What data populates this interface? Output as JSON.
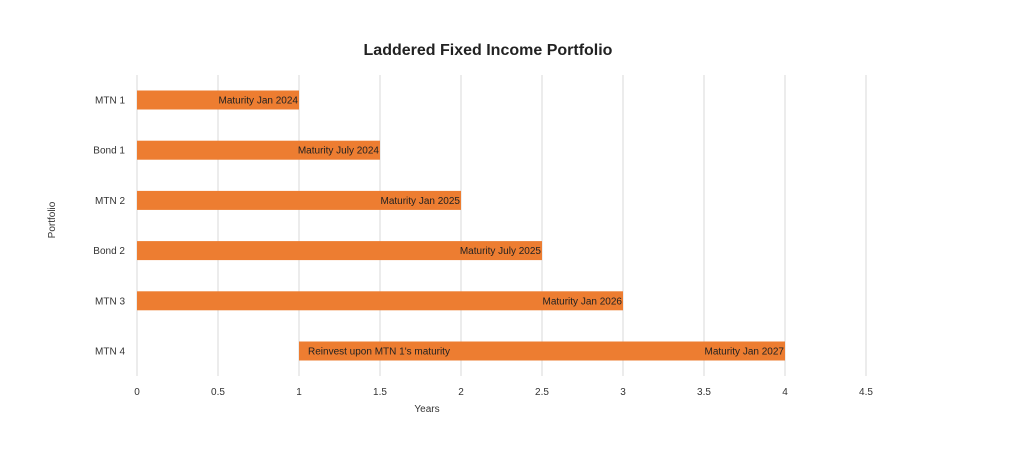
{
  "chart_data": {
    "type": "bar",
    "orientation": "horizontal",
    "stacked_range": true,
    "title": "Laddered Fixed Income Portfolio",
    "xlabel": "Years",
    "ylabel": "Portfolio",
    "xlim": [
      0,
      4.5
    ],
    "x_ticks": [
      "0",
      "0.5",
      "1",
      "1.5",
      "2",
      "2.5",
      "3",
      "3.5",
      "4",
      "4.5"
    ],
    "grid": "vertical",
    "legend": "none",
    "bar_color": "#ED7D31",
    "categories": [
      "MTN 1",
      "Bond 1",
      "MTN 2",
      "Bond 2",
      "MTN 3",
      "MTN 4"
    ],
    "bars": [
      {
        "category": "MTN 1",
        "start": 0,
        "end": 1,
        "labels": [
          {
            "text": "Maturity Jan 2024",
            "anchor": "end"
          }
        ]
      },
      {
        "category": "Bond 1",
        "start": 0,
        "end": 1.5,
        "labels": [
          {
            "text": "Maturity July 2024",
            "anchor": "end"
          }
        ]
      },
      {
        "category": "MTN 2",
        "start": 0,
        "end": 2,
        "labels": [
          {
            "text": "Maturity Jan 2025",
            "anchor": "end"
          }
        ]
      },
      {
        "category": "Bond 2",
        "start": 0,
        "end": 2.5,
        "labels": [
          {
            "text": "Maturity July 2025",
            "anchor": "end"
          }
        ]
      },
      {
        "category": "MTN 3",
        "start": 0,
        "end": 3,
        "labels": [
          {
            "text": "Maturity Jan 2026",
            "anchor": "end"
          }
        ]
      },
      {
        "category": "MTN 4",
        "start": 1,
        "end": 4,
        "labels": [
          {
            "text": "Reinvest upon MTN 1's maturity",
            "anchor": "start"
          },
          {
            "text": "Maturity Jan 2027",
            "anchor": "end"
          }
        ]
      }
    ]
  }
}
